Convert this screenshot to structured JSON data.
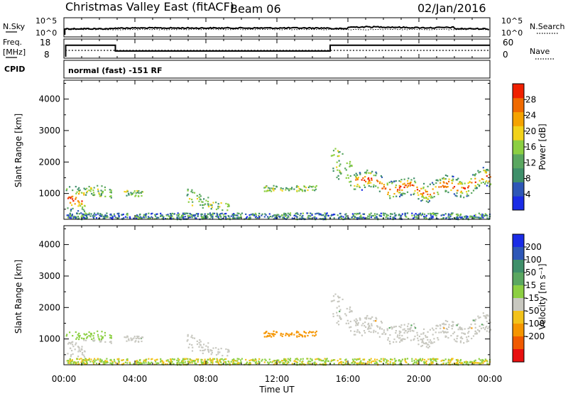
{
  "header": {
    "title": "Christmas Valley East (fitACF)",
    "beam": "Beam 06",
    "date": "02/Jan/2016"
  },
  "side_labels": {
    "nsky": "N.Sky",
    "nsearch": "N.Search",
    "freq_line1": "Freq.",
    "freq_line2": "[MHz]",
    "nave": "Nave",
    "cpid": "CPID"
  },
  "cpid_text": "normal (fast) -151 RF",
  "colors": {
    "power_scale": [
      "#1a2ce6",
      "#2e57b7",
      "#3f8f6a",
      "#5aa760",
      "#8ccf42",
      "#f2d21a",
      "#f5a300",
      "#f06a00",
      "#f02000"
    ],
    "velocity_scale": [
      "#1a2ce6",
      "#2e57b7",
      "#3f8f6a",
      "#5aa760",
      "#8ccf42",
      "#c8c8c0",
      "#f2c21a",
      "#f59500",
      "#f05a00",
      "#e81010"
    ],
    "gray_scatter": "#c8c8c0"
  },
  "chart_data": [
    {
      "type": "line",
      "name": "noise-panel",
      "left_axis_ticks": [
        "10^5",
        "10^0"
      ],
      "right_axis_ticks": [
        "10^5",
        "10^0"
      ]
    },
    {
      "type": "line",
      "name": "freq-nave-panel",
      "left_axis_ticks": [
        "18",
        "8"
      ],
      "right_axis_ticks": [
        "60",
        "0"
      ],
      "freq_steps": [
        {
          "x_start": 0.1,
          "x_end": 2.9,
          "freq": 15.6
        },
        {
          "x_start": 2.9,
          "x_end": 15.0,
          "freq": 11.1
        },
        {
          "x_start": 15.0,
          "x_end": 24.0,
          "freq": 15.6
        }
      ]
    },
    {
      "type": "heatmap",
      "name": "power-panel",
      "xlim": [
        0,
        24
      ],
      "ylim": [
        180,
        4600
      ],
      "y_ticks": [
        1000,
        2000,
        3000,
        4000
      ],
      "ylabel": "Slant Range [km]",
      "colorbar": {
        "label": "Power [dB]",
        "ticks": [
          "4",
          "8",
          "12",
          "16",
          "20",
          "24",
          "28"
        ]
      }
    },
    {
      "type": "heatmap",
      "name": "velocity-panel",
      "xlim": [
        0,
        24
      ],
      "ylim": [
        180,
        4600
      ],
      "y_ticks": [
        1000,
        2000,
        3000,
        4000
      ],
      "x_ticks": [
        "00:00",
        "04:00",
        "08:00",
        "12:00",
        "16:00",
        "20:00",
        "00:00"
      ],
      "xlabel": "Time UT",
      "ylabel": "Slant Range [km]",
      "colorbar": {
        "label": "Velocity [m s⁻¹]",
        "ticks": [
          "200",
          "100",
          "50",
          "15",
          "-15",
          "-50",
          "-100",
          "-200"
        ]
      }
    }
  ]
}
